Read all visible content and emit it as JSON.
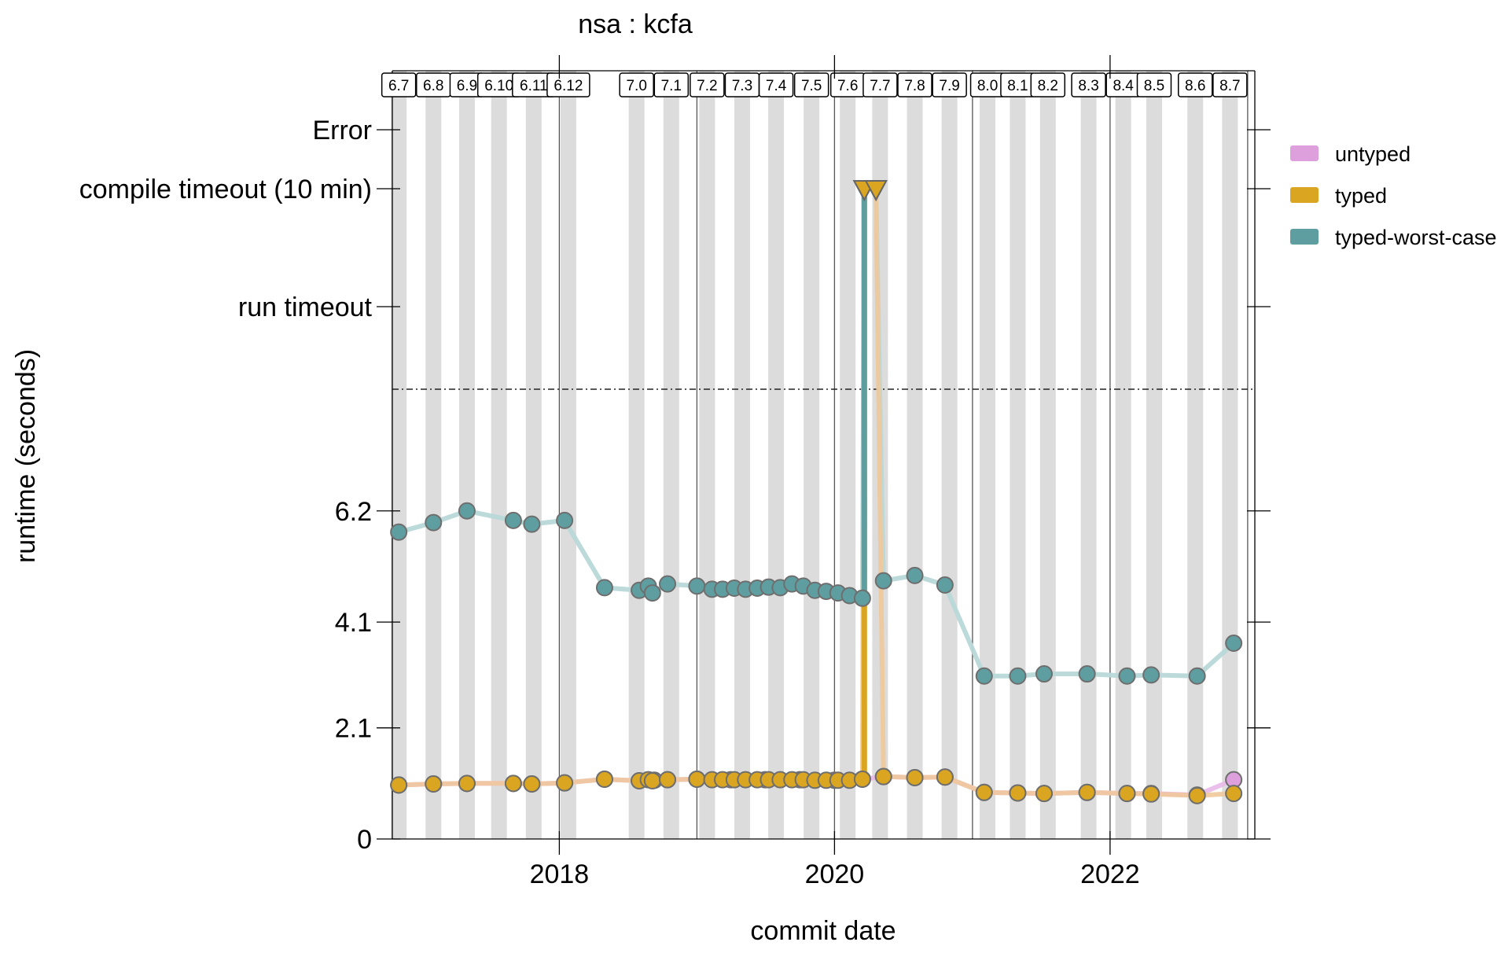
{
  "chart_data": {
    "type": "line",
    "title": "nsa : kcfa",
    "xlabel": "commit date",
    "ylabel": "runtime (seconds)",
    "x_axis": {
      "type": "date",
      "range": [
        "2016-10-15",
        "2023-01-20"
      ],
      "ticks": [
        "2018",
        "2020",
        "2022"
      ]
    },
    "y_axis": {
      "range": [
        0,
        8.5
      ],
      "ticks": [
        {
          "label": "0",
          "value": 0
        },
        {
          "label": "2.1",
          "value": 2.1
        },
        {
          "label": "4.1",
          "value": 4.1
        },
        {
          "label": "6.2",
          "value": 6.2
        }
      ],
      "special_levels": [
        {
          "label": "run timeout",
          "value": 9.1
        },
        {
          "label": "compile timeout (10 min)",
          "value": 11.1
        },
        {
          "label": "Error",
          "value": 12.1
        }
      ],
      "cutoff_line": 7.7
    },
    "year_lines": [
      "2018-01-01",
      "2019-01-01",
      "2020-01-01",
      "2021-01-01",
      "2022-01-01",
      "2023-01-01"
    ],
    "releases": [
      {
        "label": "6.7",
        "date": "2016-11-01"
      },
      {
        "label": "6.8",
        "date": "2017-02-01"
      },
      {
        "label": "6.9",
        "date": "2017-05-01"
      },
      {
        "label": "6.10",
        "date": "2017-07-25"
      },
      {
        "label": "6.11",
        "date": "2017-10-25"
      },
      {
        "label": "6.12",
        "date": "2018-01-25"
      },
      {
        "label": "7.0",
        "date": "2018-07-25"
      },
      {
        "label": "7.1",
        "date": "2018-10-25"
      },
      {
        "label": "7.2",
        "date": "2019-01-28"
      },
      {
        "label": "7.3",
        "date": "2019-05-01"
      },
      {
        "label": "7.4",
        "date": "2019-07-30"
      },
      {
        "label": "7.5",
        "date": "2019-11-01"
      },
      {
        "label": "7.6",
        "date": "2020-02-05"
      },
      {
        "label": "7.7",
        "date": "2020-05-01"
      },
      {
        "label": "7.8",
        "date": "2020-08-01"
      },
      {
        "label": "7.9",
        "date": "2020-11-01"
      },
      {
        "label": "8.0",
        "date": "2021-02-10"
      },
      {
        "label": "8.1",
        "date": "2021-05-01"
      },
      {
        "label": "8.2",
        "date": "2021-07-20"
      },
      {
        "label": "8.3",
        "date": "2021-11-05"
      },
      {
        "label": "8.4",
        "date": "2022-02-05"
      },
      {
        "label": "8.5",
        "date": "2022-04-28"
      },
      {
        "label": "8.6",
        "date": "2022-08-15"
      },
      {
        "label": "8.7",
        "date": "2022-11-15"
      }
    ],
    "legend": {
      "position": "right"
    },
    "series": [
      {
        "name": "untyped",
        "color": "#dda0dd",
        "points": [
          [
            "2016-11-01",
            1.02
          ],
          [
            "2017-02-01",
            1.04
          ],
          [
            "2017-05-01",
            1.05
          ],
          [
            "2017-09-01",
            1.05
          ],
          [
            "2017-10-20",
            1.04
          ],
          [
            "2018-01-15",
            1.06
          ],
          [
            "2018-05-01",
            1.13
          ],
          [
            "2018-08-01",
            1.1
          ],
          [
            "2018-09-10",
            1.11
          ],
          [
            "2018-10-15",
            1.12
          ],
          [
            "2019-01-01",
            1.13
          ],
          [
            "2019-04-01",
            1.12
          ],
          [
            "2019-07-01",
            1.12
          ],
          [
            "2019-10-01",
            1.12
          ],
          [
            "2020-01-01",
            1.11
          ],
          [
            "2020-03-15",
            1.13
          ],
          [
            "2020-05-10",
            1.18
          ],
          [
            "2020-08-01",
            1.16
          ],
          [
            "2020-10-20",
            1.17
          ],
          [
            "2021-02-01",
            0.88
          ],
          [
            "2021-05-01",
            0.87
          ],
          [
            "2021-07-10",
            0.86
          ],
          [
            "2021-11-01",
            0.88
          ],
          [
            "2022-02-15",
            0.86
          ],
          [
            "2022-04-20",
            0.86
          ],
          [
            "2022-08-20",
            0.83
          ],
          [
            "2022-11-25",
            1.12
          ]
        ]
      },
      {
        "name": "typed",
        "color": "#daa520",
        "points": [
          [
            "2016-11-01",
            1.02
          ],
          [
            "2017-02-01",
            1.04
          ],
          [
            "2017-05-01",
            1.05
          ],
          [
            "2017-09-01",
            1.05
          ],
          [
            "2017-10-20",
            1.04
          ],
          [
            "2018-01-15",
            1.06
          ],
          [
            "2018-05-01",
            1.13
          ],
          [
            "2018-08-01",
            1.1
          ],
          [
            "2018-08-25",
            1.12
          ],
          [
            "2018-09-05",
            1.1
          ],
          [
            "2018-10-15",
            1.12
          ],
          [
            "2019-01-01",
            1.13
          ],
          [
            "2019-02-10",
            1.12
          ],
          [
            "2019-03-10",
            1.12
          ],
          [
            "2019-04-10",
            1.12
          ],
          [
            "2019-05-10",
            1.12
          ],
          [
            "2019-06-10",
            1.12
          ],
          [
            "2019-07-10",
            1.12
          ],
          [
            "2019-08-10",
            1.12
          ],
          [
            "2019-09-10",
            1.12
          ],
          [
            "2019-10-10",
            1.12
          ],
          [
            "2019-11-10",
            1.11
          ],
          [
            "2019-12-10",
            1.11
          ],
          [
            "2020-01-10",
            1.11
          ],
          [
            "2020-02-10",
            1.11
          ],
          [
            "2020-03-15",
            1.13
          ],
          [
            "2020-03-20",
            11.1
          ],
          [
            "2020-04-20",
            11.1
          ],
          [
            "2020-05-10",
            1.18
          ],
          [
            "2020-08-01",
            1.16
          ],
          [
            "2020-10-20",
            1.17
          ],
          [
            "2021-02-01",
            0.88
          ],
          [
            "2021-05-01",
            0.87
          ],
          [
            "2021-07-10",
            0.86
          ],
          [
            "2021-11-01",
            0.88
          ],
          [
            "2022-02-15",
            0.86
          ],
          [
            "2022-04-20",
            0.85
          ],
          [
            "2022-08-20",
            0.82
          ],
          [
            "2022-11-25",
            0.86
          ]
        ]
      },
      {
        "name": "typed-worst-case",
        "color": "#5f9ea0",
        "points": [
          [
            "2016-11-01",
            5.8
          ],
          [
            "2017-02-01",
            5.98
          ],
          [
            "2017-05-01",
            6.2
          ],
          [
            "2017-09-01",
            6.02
          ],
          [
            "2017-10-20",
            5.95
          ],
          [
            "2018-01-15",
            6.02
          ],
          [
            "2018-05-01",
            4.75
          ],
          [
            "2018-08-01",
            4.7
          ],
          [
            "2018-08-25",
            4.78
          ],
          [
            "2018-09-05",
            4.65
          ],
          [
            "2018-10-15",
            4.82
          ],
          [
            "2019-01-01",
            4.78
          ],
          [
            "2019-02-10",
            4.72
          ],
          [
            "2019-03-10",
            4.72
          ],
          [
            "2019-04-10",
            4.74
          ],
          [
            "2019-05-10",
            4.72
          ],
          [
            "2019-06-10",
            4.74
          ],
          [
            "2019-07-10",
            4.76
          ],
          [
            "2019-08-10",
            4.75
          ],
          [
            "2019-09-10",
            4.82
          ],
          [
            "2019-10-10",
            4.78
          ],
          [
            "2019-11-10",
            4.7
          ],
          [
            "2019-12-10",
            4.68
          ],
          [
            "2020-01-10",
            4.65
          ],
          [
            "2020-02-10",
            4.6
          ],
          [
            "2020-03-15",
            4.55
          ],
          [
            "2020-03-20",
            11.1
          ],
          [
            "2020-04-20",
            11.1
          ],
          [
            "2020-05-10",
            4.88
          ],
          [
            "2020-08-01",
            4.98
          ],
          [
            "2020-10-20",
            4.8
          ],
          [
            "2021-02-01",
            3.08
          ],
          [
            "2021-05-01",
            3.08
          ],
          [
            "2021-07-10",
            3.12
          ],
          [
            "2021-11-01",
            3.12
          ],
          [
            "2022-02-15",
            3.08
          ],
          [
            "2022-04-20",
            3.1
          ],
          [
            "2022-08-20",
            3.08
          ],
          [
            "2022-11-25",
            3.7
          ]
        ]
      }
    ]
  }
}
